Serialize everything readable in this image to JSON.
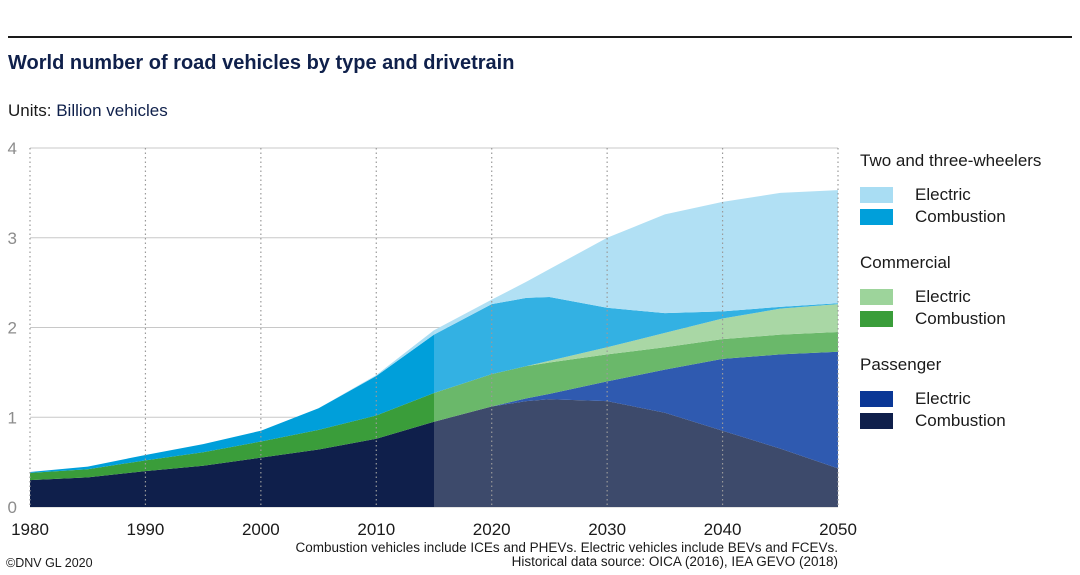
{
  "chart_data": {
    "type": "area",
    "stacked": true,
    "title": "World number of road vehicles by type and drivetrain",
    "units_label": "Units:",
    "units_value": "Billion vehicles",
    "xlabel": "",
    "ylabel": "",
    "x": [
      1980,
      1985,
      1990,
      1995,
      2000,
      2005,
      2010,
      2015,
      2020,
      2023,
      2025,
      2030,
      2035,
      2040,
      2045,
      2050
    ],
    "xlim": [
      1980,
      2050
    ],
    "ylim": [
      0,
      4
    ],
    "forecast_start": 2015,
    "x_ticks": [
      "1980",
      "1990",
      "2000",
      "2010",
      "2020",
      "2030",
      "2040",
      "2050"
    ],
    "y_ticks": [
      "0",
      "1",
      "2",
      "3",
      "4"
    ],
    "series": [
      {
        "name": "Passenger Combustion",
        "group": "Passenger",
        "type": "Combustion",
        "color": "#0f1f4b",
        "forecast_color": "#3d4a6b",
        "values": [
          0.3,
          0.33,
          0.4,
          0.46,
          0.55,
          0.64,
          0.76,
          0.95,
          1.12,
          1.18,
          1.2,
          1.18,
          1.05,
          0.85,
          0.65,
          0.43
        ]
      },
      {
        "name": "Passenger Electric",
        "group": "Passenger",
        "type": "Electric",
        "color": "#0a3796",
        "forecast_color": "#2f5ab0",
        "values": [
          0,
          0,
          0,
          0,
          0,
          0,
          0,
          0,
          0,
          0.03,
          0.06,
          0.22,
          0.48,
          0.8,
          1.05,
          1.3
        ]
      },
      {
        "name": "Commercial Combustion",
        "group": "Commercial",
        "type": "Combustion",
        "color": "#3a9d3a",
        "forecast_color": "#6ab86a",
        "values": [
          0.08,
          0.09,
          0.12,
          0.15,
          0.18,
          0.22,
          0.26,
          0.32,
          0.36,
          0.36,
          0.35,
          0.3,
          0.25,
          0.22,
          0.22,
          0.22
        ]
      },
      {
        "name": "Commercial Electric",
        "group": "Commercial",
        "type": "Electric",
        "color": "#9dd49b",
        "forecast_color": "#a9d7a5",
        "values": [
          0,
          0,
          0,
          0,
          0,
          0,
          0,
          0,
          0,
          0,
          0.02,
          0.08,
          0.16,
          0.23,
          0.29,
          0.31
        ]
      },
      {
        "name": "Two and three-wheelers Combustion",
        "group": "Two and three-wheelers",
        "type": "Combustion",
        "color": "#009fda",
        "forecast_color": "#33b1e3",
        "values": [
          0.01,
          0.03,
          0.06,
          0.09,
          0.12,
          0.24,
          0.44,
          0.65,
          0.78,
          0.76,
          0.71,
          0.44,
          0.22,
          0.08,
          0.02,
          0.01
        ]
      },
      {
        "name": "Two and three-wheelers Electric",
        "group": "Two and three-wheelers",
        "type": "Electric",
        "color": "#a9ddf3",
        "forecast_color": "#b1e0f4",
        "values": [
          0,
          0,
          0,
          0,
          0,
          0,
          0.01,
          0.05,
          0.05,
          0.18,
          0.31,
          0.78,
          1.1,
          1.22,
          1.27,
          1.26
        ]
      }
    ]
  },
  "legend": {
    "groups": [
      {
        "title": "Two and three-wheelers",
        "items": [
          {
            "label": "Electric",
            "color": "#a9ddf3"
          },
          {
            "label": "Combustion",
            "color": "#009fda"
          }
        ]
      },
      {
        "title": "Commercial",
        "items": [
          {
            "label": "Electric",
            "color": "#9dd49b"
          },
          {
            "label": "Combustion",
            "color": "#3a9d3a"
          }
        ]
      },
      {
        "title": "Passenger",
        "items": [
          {
            "label": "Electric",
            "color": "#0a3796"
          },
          {
            "label": "Combustion",
            "color": "#0f1f4b"
          }
        ]
      }
    ]
  },
  "footnote": {
    "line1": "Combustion vehicles include ICEs and PHEVs. Electric vehicles include BEVs and FCEVs.",
    "line2": "Historical data source: OICA (2016), IEA GEVO (2018)"
  },
  "copyright": "©DNV GL 2020"
}
